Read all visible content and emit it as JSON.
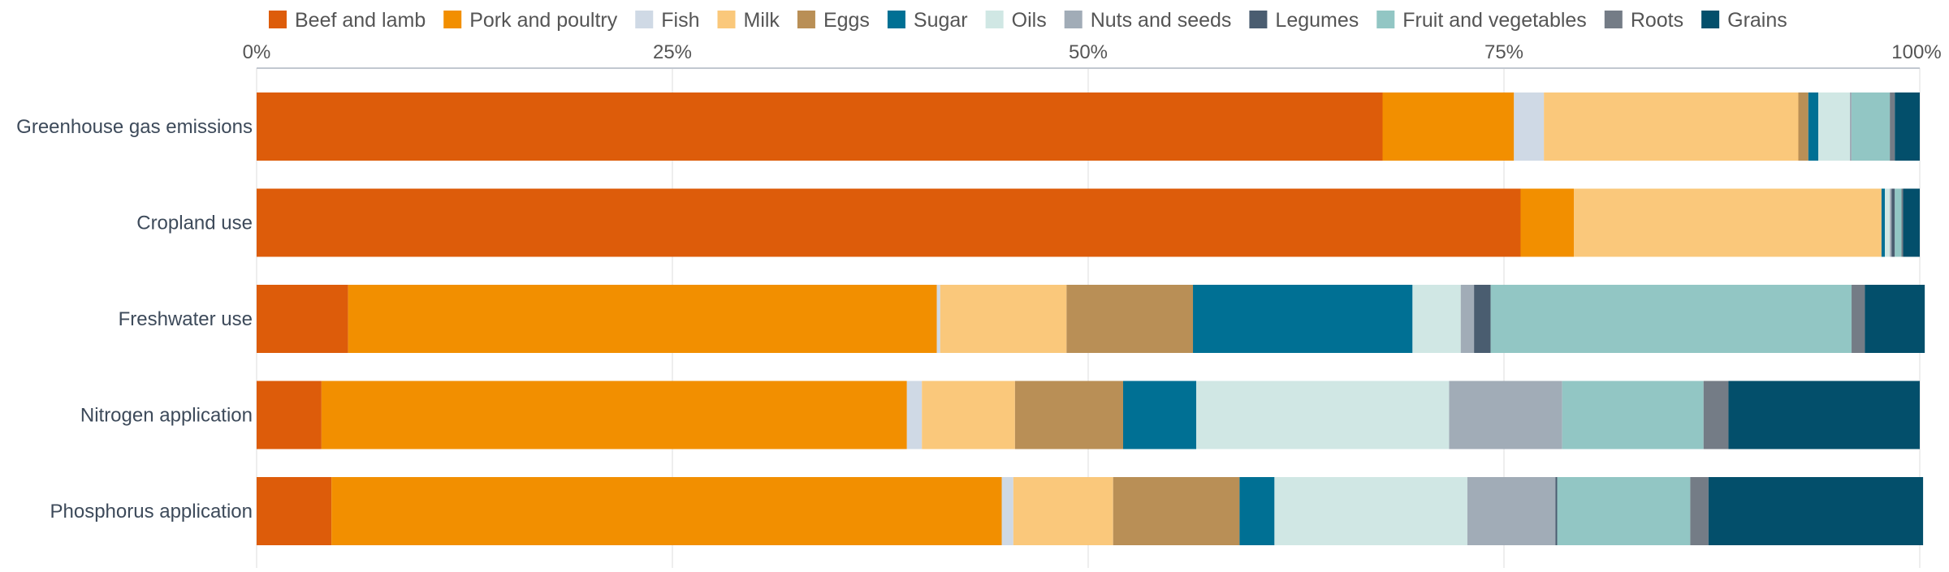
{
  "chart_data": {
    "type": "bar",
    "orientation": "horizontal",
    "stacked": true,
    "percent": true,
    "xlim": [
      0,
      100
    ],
    "x_ticks": [
      0,
      25,
      50,
      75,
      100
    ],
    "x_tick_labels": [
      "0%",
      "25%",
      "50%",
      "75%",
      "100%"
    ],
    "grid": true,
    "legend_position": "top",
    "categories": [
      "Greenhouse gas emissions",
      "Cropland use",
      "Freshwater use",
      "Nitrogen application",
      "Phosphorus application"
    ],
    "series": [
      {
        "name": "Beef and lamb",
        "color": "#dd5c0a",
        "values": [
          67.7,
          76.0,
          5.5,
          3.9,
          4.5
        ]
      },
      {
        "name": "Pork and poultry",
        "color": "#f28f00",
        "values": [
          7.9,
          3.2,
          35.4,
          35.2,
          40.3
        ]
      },
      {
        "name": "Fish",
        "color": "#cfd9e5",
        "values": [
          1.8,
          0.0,
          0.2,
          0.9,
          0.7
        ]
      },
      {
        "name": "Milk",
        "color": "#fac87b",
        "values": [
          15.3,
          18.5,
          7.6,
          5.6,
          6.0
        ]
      },
      {
        "name": "Eggs",
        "color": "#b98f56",
        "values": [
          0.6,
          0.0,
          7.6,
          6.5,
          7.6
        ]
      },
      {
        "name": "Sugar",
        "color": "#007094",
        "values": [
          0.6,
          0.2,
          13.2,
          4.4,
          2.1
        ]
      },
      {
        "name": "Oils",
        "color": "#d0e7e4",
        "values": [
          1.9,
          0.3,
          2.9,
          15.2,
          11.6
        ]
      },
      {
        "name": "Nuts and seeds",
        "color": "#a1acb7",
        "values": [
          0.1,
          0.1,
          0.8,
          6.8,
          5.3
        ]
      },
      {
        "name": "Legumes",
        "color": "#4a5d70",
        "values": [
          0.0,
          0.2,
          1.0,
          0.0,
          0.1
        ]
      },
      {
        "name": "Fruit and vegetables",
        "color": "#92c6c4",
        "values": [
          2.3,
          0.4,
          21.7,
          8.5,
          8.0
        ]
      },
      {
        "name": "Roots",
        "color": "#747c86",
        "values": [
          0.3,
          0.1,
          0.8,
          1.5,
          1.1
        ]
      },
      {
        "name": "Grains",
        "color": "#034f6b",
        "values": [
          1.5,
          1.0,
          3.6,
          11.5,
          12.9
        ]
      }
    ]
  }
}
